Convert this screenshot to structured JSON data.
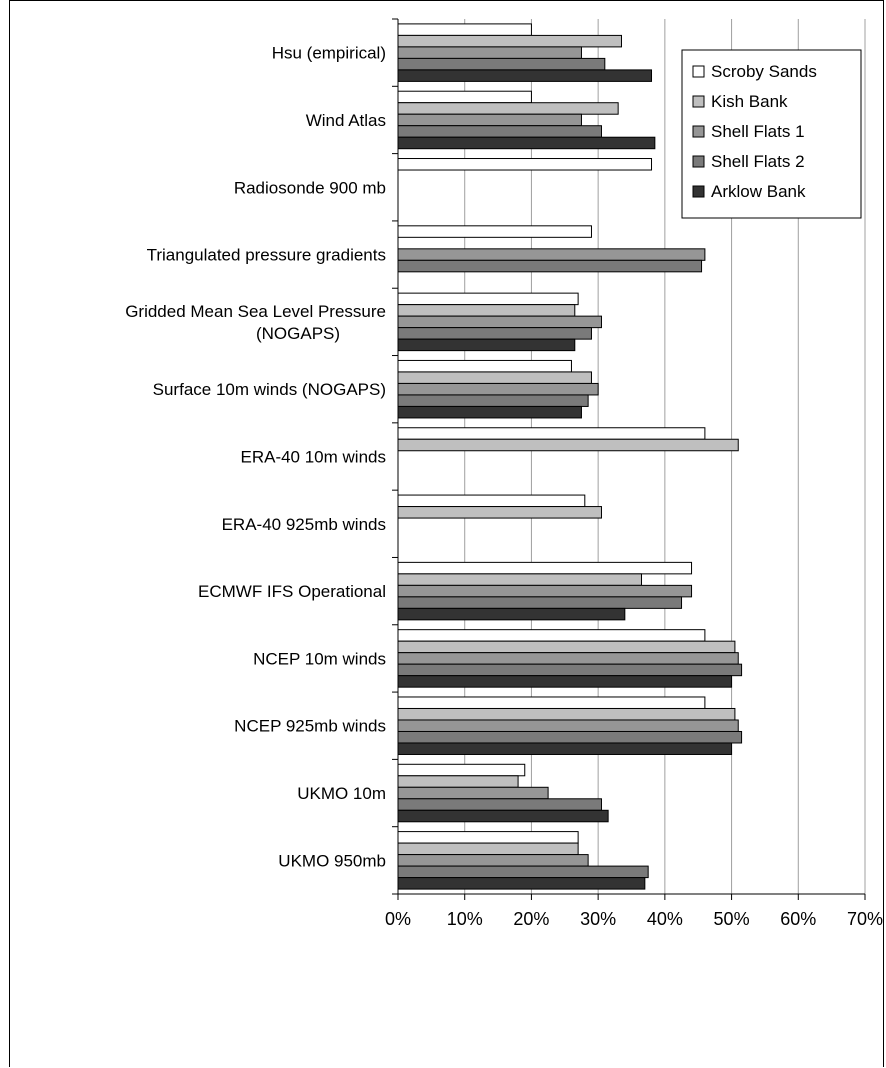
{
  "chart_data": {
    "type": "bar",
    "orientation": "horizontal",
    "title": "",
    "xlabel": "",
    "ylabel": "",
    "xlim": [
      0,
      70
    ],
    "xticks": [
      "0%",
      "10%",
      "20%",
      "30%",
      "40%",
      "50%",
      "60%",
      "70%"
    ],
    "grid": true,
    "legend_position": "top-right",
    "categories": [
      [
        "Hsu (empirical)"
      ],
      [
        "Wind Atlas"
      ],
      [
        "Radiosonde 900 mb"
      ],
      [
        "Triangulated pressure gradients"
      ],
      [
        "Gridded Mean Sea Level Pressure",
        "(NOGAPS)"
      ],
      [
        "Surface 10m winds (NOGAPS)"
      ],
      [
        "ERA-40 10m winds"
      ],
      [
        "ERA-40 925mb winds"
      ],
      [
        "ECMWF IFS Operational"
      ],
      [
        "NCEP 10m winds"
      ],
      [
        "NCEP 925mb winds"
      ],
      [
        "UKMO 10m"
      ],
      [
        "UKMO 950mb"
      ]
    ],
    "series": [
      {
        "name": "Scroby Sands",
        "color": "#ffffff",
        "values": [
          20,
          20,
          38,
          29,
          27,
          26,
          46,
          28,
          44,
          46,
          46,
          19,
          27
        ]
      },
      {
        "name": "Kish Bank",
        "color": "#bfbfbf",
        "values": [
          33.5,
          33,
          null,
          null,
          26.5,
          29,
          51,
          30.5,
          36.5,
          50.5,
          50.5,
          18,
          27
        ]
      },
      {
        "name": "Shell Flats 1",
        "color": "#969696",
        "values": [
          27.5,
          27.5,
          null,
          46,
          30.5,
          30,
          null,
          null,
          44,
          51,
          51,
          22.5,
          28.5
        ]
      },
      {
        "name": "Shell Flats 2",
        "color": "#7a7a7a",
        "values": [
          31,
          30.5,
          null,
          45.5,
          29,
          28.5,
          null,
          null,
          42.5,
          51.5,
          51.5,
          30.5,
          37.5
        ]
      },
      {
        "name": "Arklow Bank",
        "color": "#333333",
        "values": [
          38,
          38.5,
          null,
          null,
          26.5,
          27.5,
          null,
          null,
          34,
          50,
          50,
          31.5,
          37
        ]
      }
    ]
  }
}
